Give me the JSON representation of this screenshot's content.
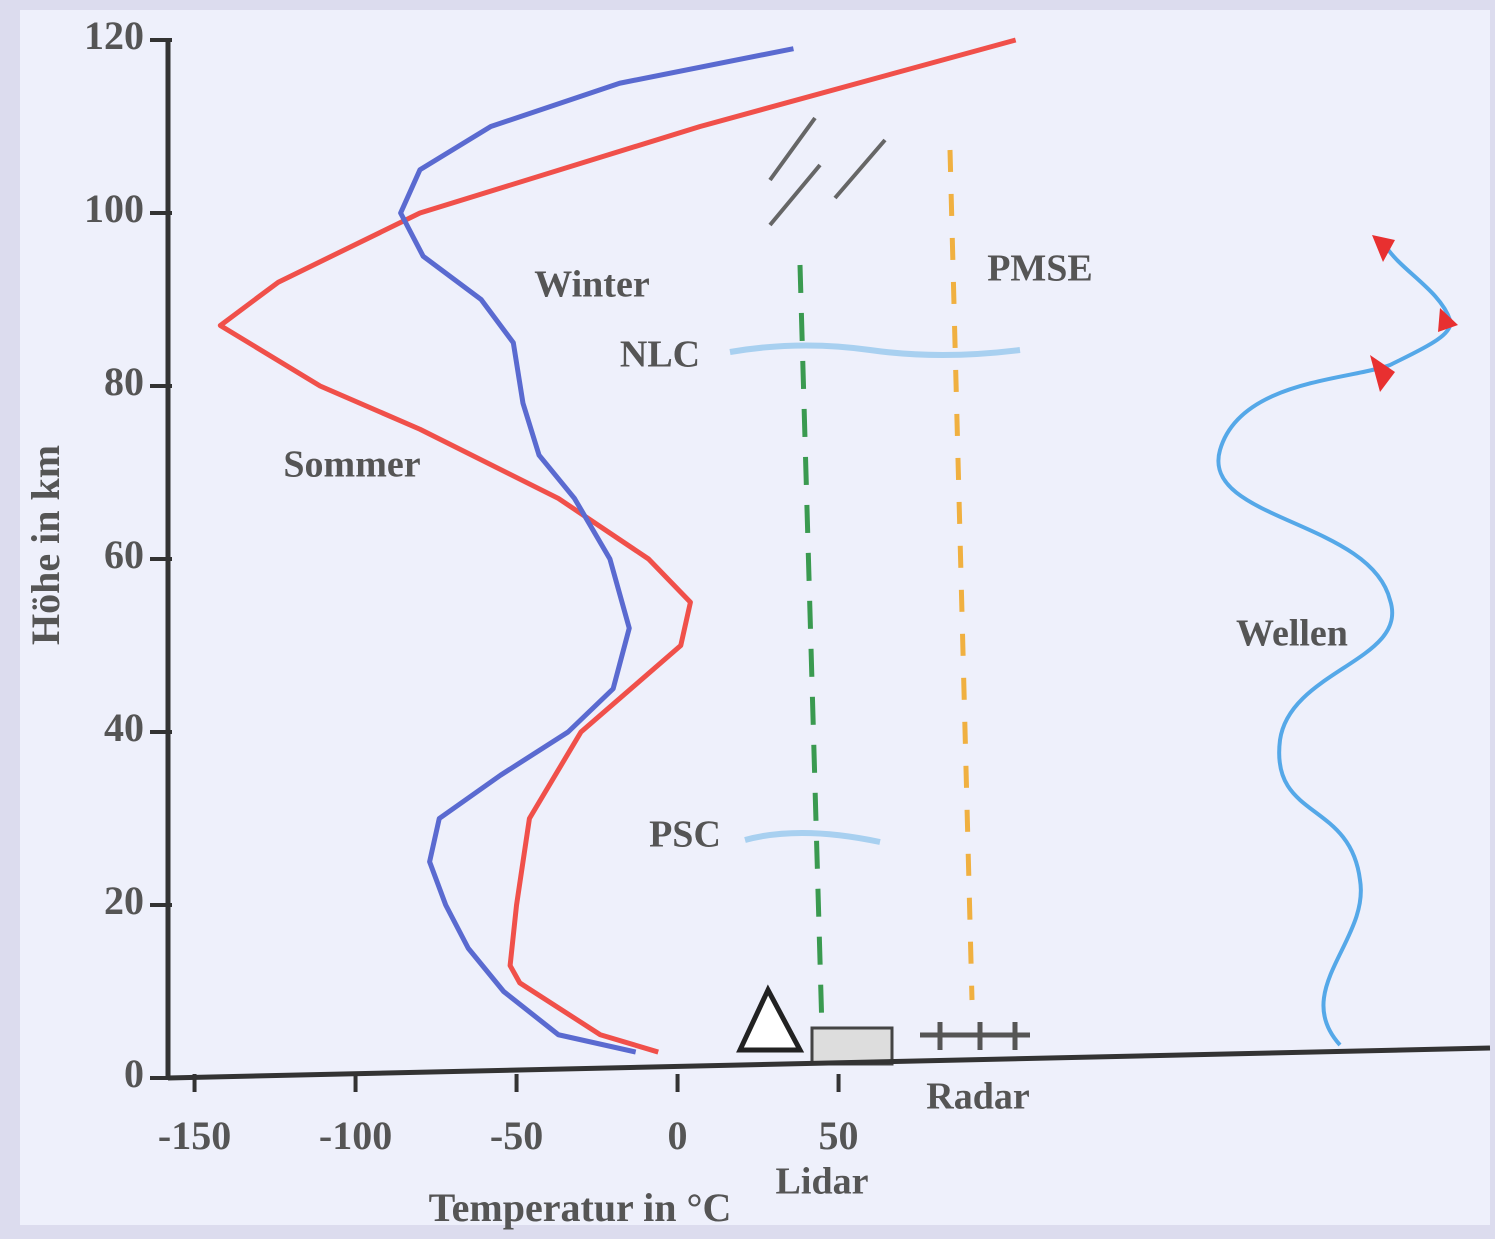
{
  "chart_data": {
    "type": "line",
    "xlabel": "Temperatur in °C",
    "ylabel": "Höhe in km",
    "xlim": [
      -157,
      252
    ],
    "ylim": [
      0,
      120
    ],
    "xticks": [
      -150,
      -100,
      -50,
      0,
      50
    ],
    "yticks": [
      0,
      20,
      40,
      60,
      80,
      100,
      120
    ],
    "series": [
      {
        "name": "Sommer",
        "color": "#f0504a",
        "y": [
          3,
          5,
          11,
          13,
          20,
          30,
          40,
          50,
          55,
          60,
          67,
          75,
          80,
          87,
          92,
          100,
          110,
          120
        ],
        "x": [
          -6,
          -24,
          -49,
          -52,
          -50,
          -46,
          -30,
          1,
          4,
          -9,
          -37,
          -80,
          -111,
          -142,
          -124,
          -80,
          7,
          105
        ]
      },
      {
        "name": "Winter",
        "color": "#5a6ad0",
        "y": [
          3,
          5,
          10,
          15,
          20,
          25,
          30,
          35,
          40,
          45,
          52,
          60,
          67,
          72,
          78,
          85,
          90,
          95,
          100,
          105,
          110,
          115,
          119
        ],
        "x": [
          -13,
          -37,
          -54,
          -65,
          -72,
          -77,
          -74,
          -55,
          -34,
          -20,
          -15,
          -21,
          -32,
          -43,
          -48,
          -51,
          -61,
          -79,
          -86,
          -80,
          -58,
          -18,
          36
        ]
      }
    ],
    "annotations": [
      "Winter",
      "Sommer",
      "NLC",
      "PSC",
      "PMSE",
      "Wellen",
      "Radar",
      "Lidar"
    ]
  }
}
